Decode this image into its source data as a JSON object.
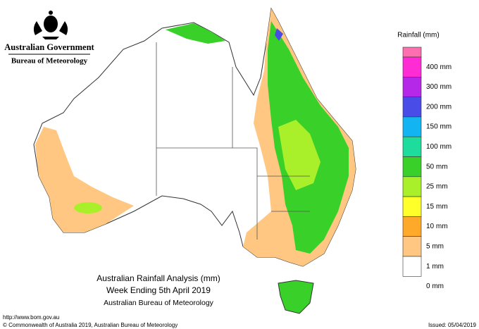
{
  "header": {
    "agency": "Australian Government",
    "bureau": "Bureau of Meteorology"
  },
  "legend": {
    "title": "Rainfall (mm)",
    "colors": [
      "#ff6fb0",
      "#ff2cd6",
      "#b528e8",
      "#4a4ce8",
      "#13b4f2",
      "#1ddc9c",
      "#3ad02a",
      "#a9ef2a",
      "#ffff2a",
      "#ffa92a",
      "#ffc781",
      "#ffffff"
    ],
    "labels": [
      "400 mm",
      "300 mm",
      "200 mm",
      "150 mm",
      "100 mm",
      "50 mm",
      "25 mm",
      "15 mm",
      "10 mm",
      "5 mm",
      "1 mm",
      "0 mm"
    ]
  },
  "title": {
    "line1": "Australian Rainfall Analysis (mm)",
    "line2": "Week Ending 5th April 2019",
    "line3": "Australian Bureau of Meteorology"
  },
  "footer": {
    "url": "http://www.bom.gov.au",
    "copyright": "© Commonwealth of Australia 2019, Australian Bureau of Meteorology",
    "issued": "Issued: 05/04/2019"
  }
}
